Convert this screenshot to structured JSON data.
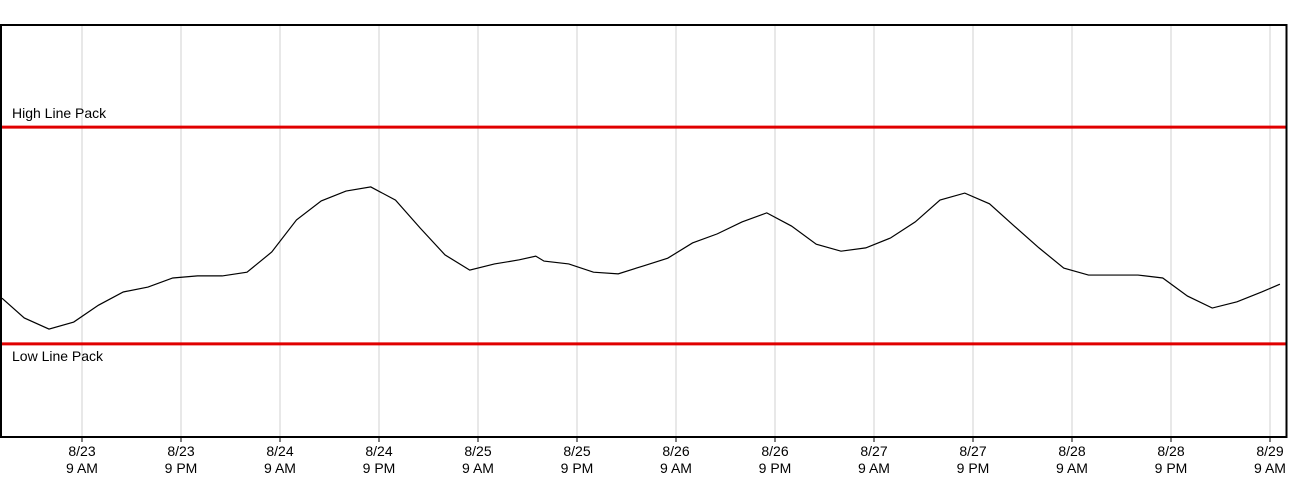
{
  "chart_data": {
    "type": "line",
    "x": [
      -0.7,
      2,
      5,
      8,
      11,
      14,
      17,
      20,
      23,
      26,
      29,
      32,
      35,
      38,
      41,
      44,
      47,
      50,
      53,
      56,
      59,
      62,
      64,
      65,
      68,
      71,
      74,
      77,
      80,
      83,
      86,
      89,
      92,
      95,
      98,
      101,
      104,
      107,
      110,
      113,
      116,
      119,
      122,
      125,
      128,
      131,
      134,
      137,
      140,
      143,
      146,
      149,
      152,
      154.2
    ],
    "series": [
      {
        "color": "#000000",
        "values": [
          33.7,
          28.9,
          26.2,
          27.9,
          32.0,
          35.2,
          36.4,
          38.6,
          39.1,
          39.1,
          40.0,
          44.9,
          52.7,
          57.3,
          59.7,
          60.7,
          57.5,
          50.7,
          44.2,
          40.5,
          42.0,
          43.0,
          43.9,
          42.7,
          42.0,
          40.0,
          39.6,
          41.5,
          43.4,
          47.1,
          49.3,
          52.2,
          54.4,
          51.2,
          46.8,
          45.1,
          45.9,
          48.3,
          52.2,
          57.5,
          59.2,
          56.6,
          51.2,
          45.9,
          41.0,
          39.3,
          39.3,
          39.3,
          38.6,
          34.2,
          31.3,
          32.8,
          35.2,
          37.1
        ]
      }
    ],
    "xlim": [
      -1,
      155
    ],
    "ylim": [
      0,
      100
    ],
    "xticks": [
      {
        "value": 9,
        "label": [
          "8/23",
          "9 AM"
        ]
      },
      {
        "value": 21,
        "label": [
          "8/23",
          "9 PM"
        ]
      },
      {
        "value": 33,
        "label": [
          "8/24",
          "9 AM"
        ]
      },
      {
        "value": 45,
        "label": [
          "8/24",
          "9 PM"
        ]
      },
      {
        "value": 57,
        "label": [
          "8/25",
          "9 AM"
        ]
      },
      {
        "value": 69,
        "label": [
          "8/25",
          "9 PM"
        ]
      },
      {
        "value": 81,
        "label": [
          "8/26",
          "9 AM"
        ]
      },
      {
        "value": 93,
        "label": [
          "8/26",
          "9 PM"
        ]
      },
      {
        "value": 105,
        "label": [
          "8/27",
          "9 AM"
        ]
      },
      {
        "value": 117,
        "label": [
          "8/27",
          "9 PM"
        ]
      },
      {
        "value": 129,
        "label": [
          "8/28",
          "9 AM"
        ]
      },
      {
        "value": 141,
        "label": [
          "8/28",
          "9 PM"
        ]
      },
      {
        "value": 153,
        "label": [
          "8/29",
          "9 AM"
        ]
      }
    ],
    "grid": true,
    "reference_lines": [
      {
        "label": "High Line Pack",
        "value": 75.2,
        "color": "#e00000",
        "label_position": "above"
      },
      {
        "label": "Low Line Pack",
        "value": 22.6,
        "color": "#e00000",
        "label_position": "below"
      }
    ]
  }
}
